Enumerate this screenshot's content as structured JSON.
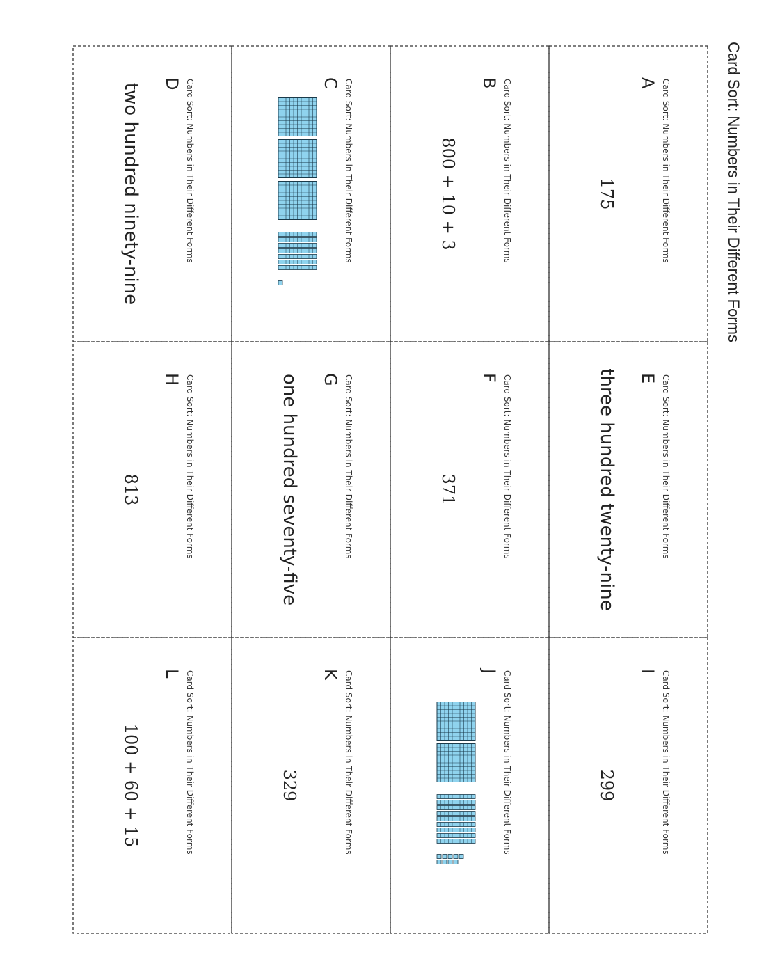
{
  "header": {
    "title": "Card Sort: Numbers in Their Different Forms"
  },
  "cards": [
    {
      "letter": "A",
      "caption": "Card Sort:  Numbers in Their Different Forms",
      "text": "175",
      "style": "numeral"
    },
    {
      "letter": "B",
      "caption": "Card Sort: Numbers in Their Different Forms",
      "text": "800 + 10 + 3",
      "style": "numeral"
    },
    {
      "letter": "C",
      "caption": "Card Sort: Numbers in Their Different Forms",
      "blocks": {
        "hundreds": 3,
        "tens": 7,
        "ones": 1
      }
    },
    {
      "letter": "D",
      "caption": "Card Sort: Numbers in Their Different Forms",
      "text": "two hundred ninety-nine",
      "style": "words"
    },
    {
      "letter": "E",
      "caption": "Card Sort: Numbers in Their Different Forms",
      "text": "three hundred twenty-nine",
      "style": "words"
    },
    {
      "letter": "F",
      "caption": "Card Sort: Numbers in Their Different Forms",
      "text": "371",
      "style": "numeral"
    },
    {
      "letter": "G",
      "caption": "Card Sort: Numbers in Their Different Forms",
      "text": "one hundred seventy-five",
      "style": "words"
    },
    {
      "letter": "H",
      "caption": "Card Sort: Numbers in Their Different Forms",
      "text": "813",
      "style": "numeral"
    },
    {
      "letter": "I",
      "caption": "Card Sort: Numbers in Their Different Forms",
      "text": "299",
      "style": "numeral"
    },
    {
      "letter": "J",
      "caption": "Card Sort: Numbers in Their Different Forms",
      "blocks": {
        "hundreds": 2,
        "tens": 9,
        "ones": 9
      }
    },
    {
      "letter": "K",
      "caption": "Card Sort: Numbers in Their Different Forms",
      "text": "329",
      "style": "numeral"
    },
    {
      "letter": "L",
      "caption": "Card Sort: Numbers in Their Different Forms",
      "text": "100 + 60 + 15",
      "style": "numeral"
    }
  ]
}
